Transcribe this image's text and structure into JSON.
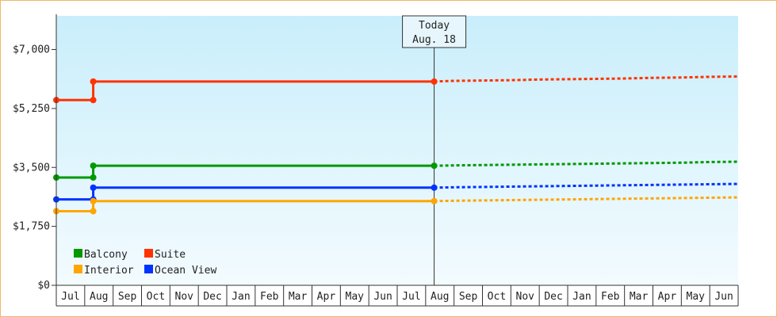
{
  "chart_data": {
    "type": "line",
    "title": "",
    "xlabel": "",
    "ylabel": "",
    "ylim": [
      0,
      8000
    ],
    "y_ticks": [
      0,
      1750,
      3500,
      5250,
      7000
    ],
    "y_tick_labels": [
      "$0",
      "$1,750",
      "$3,500",
      "$5,250",
      "$7,000"
    ],
    "x_tick_labels": [
      "Jul",
      "Aug",
      "Sep",
      "Oct",
      "Nov",
      "Dec",
      "Jan",
      "Feb",
      "Mar",
      "Apr",
      "May",
      "Jun",
      "Jul",
      "Aug",
      "Sep",
      "Oct",
      "Nov",
      "Dec",
      "Jan",
      "Feb",
      "Mar",
      "Apr",
      "May",
      "Jun"
    ],
    "grid": false,
    "legend_position": "bottom-left",
    "today_marker": {
      "line1": "Today",
      "line2": "Aug. 18",
      "x": 13.3
    },
    "series": [
      {
        "name": "Suite",
        "color": "#ff3300",
        "points": [
          [
            0,
            5500
          ],
          [
            1.3,
            5500
          ],
          [
            1.3,
            6050
          ],
          [
            13.3,
            6050
          ]
        ],
        "forecast": [
          [
            13.3,
            6050
          ],
          [
            14,
            6070
          ],
          [
            15,
            6080
          ],
          [
            16,
            6090
          ],
          [
            17,
            6110
          ],
          [
            18,
            6120
          ],
          [
            19,
            6130
          ],
          [
            20,
            6140
          ],
          [
            21,
            6160
          ],
          [
            22,
            6170
          ],
          [
            23,
            6190
          ],
          [
            24,
            6200
          ]
        ]
      },
      {
        "name": "Balcony",
        "color": "#009900",
        "points": [
          [
            0,
            3200
          ],
          [
            1.3,
            3200
          ],
          [
            1.3,
            3550
          ],
          [
            13.3,
            3550
          ]
        ],
        "forecast": [
          [
            13.3,
            3550
          ],
          [
            14,
            3560
          ],
          [
            15,
            3570
          ],
          [
            16,
            3580
          ],
          [
            17,
            3590
          ],
          [
            18,
            3600
          ],
          [
            19,
            3610
          ],
          [
            20,
            3620
          ],
          [
            21,
            3630
          ],
          [
            22,
            3640
          ],
          [
            23,
            3660
          ],
          [
            24,
            3670
          ]
        ]
      },
      {
        "name": "Ocean View",
        "color": "#0033ff",
        "points": [
          [
            0,
            2550
          ],
          [
            1.3,
            2550
          ],
          [
            1.3,
            2900
          ],
          [
            13.3,
            2900
          ]
        ],
        "forecast": [
          [
            13.3,
            2900
          ],
          [
            14,
            2910
          ],
          [
            15,
            2920
          ],
          [
            16,
            2930
          ],
          [
            17,
            2940
          ],
          [
            18,
            2950
          ],
          [
            19,
            2960
          ],
          [
            20,
            2970
          ],
          [
            21,
            2980
          ],
          [
            22,
            2990
          ],
          [
            23,
            3000
          ],
          [
            24,
            3010
          ]
        ]
      },
      {
        "name": "Interior",
        "color": "#ffa500",
        "points": [
          [
            0,
            2200
          ],
          [
            1.3,
            2200
          ],
          [
            1.3,
            2500
          ],
          [
            13.3,
            2500
          ]
        ],
        "forecast": [
          [
            13.3,
            2500
          ],
          [
            14,
            2510
          ],
          [
            15,
            2520
          ],
          [
            16,
            2530
          ],
          [
            17,
            2540
          ],
          [
            18,
            2550
          ],
          [
            19,
            2560
          ],
          [
            20,
            2570
          ],
          [
            21,
            2580
          ],
          [
            22,
            2590
          ],
          [
            23,
            2600
          ],
          [
            24,
            2610
          ]
        ]
      }
    ],
    "legend": [
      {
        "name": "Balcony",
        "color": "#009900"
      },
      {
        "name": "Suite",
        "color": "#ff3300"
      },
      {
        "name": "Interior",
        "color": "#ffa500"
      },
      {
        "name": "Ocean View",
        "color": "#0033ff"
      }
    ]
  }
}
